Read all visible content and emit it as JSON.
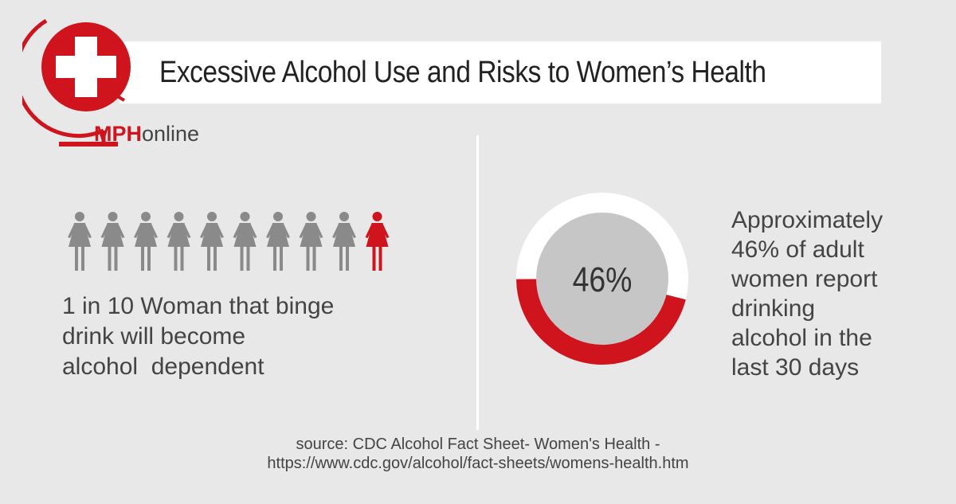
{
  "header": {
    "title": "Excessive Alcohol Use and Risks to Women’s Health"
  },
  "brand": {
    "bold": "MPH",
    "rest": "online",
    "accent_color": "#d0141e",
    "icon": "medical-cross-globe-icon"
  },
  "left_panel": {
    "figures_total": 10,
    "figures_highlighted": 1,
    "figure_color": "#8a8a8a",
    "highlight_color": "#d0141e",
    "line1": "1 in 10 Woman that binge",
    "line2": "drink will become",
    "line3": "alcohol  dependent"
  },
  "right_panel": {
    "percent_value": 46,
    "percent_label": "46%",
    "line1": "Approximately",
    "line2": "46% of adult",
    "line3": "women report",
    "line4": "drinking",
    "line5": "alcohol in the",
    "line6": "last 30 days"
  },
  "source": {
    "line1": "source: CDC Alcohol Fact Sheet- Women's Health -",
    "line2": "https://www.cdc.gov/alcohol/fact-sheets/womens-health.htm"
  }
}
